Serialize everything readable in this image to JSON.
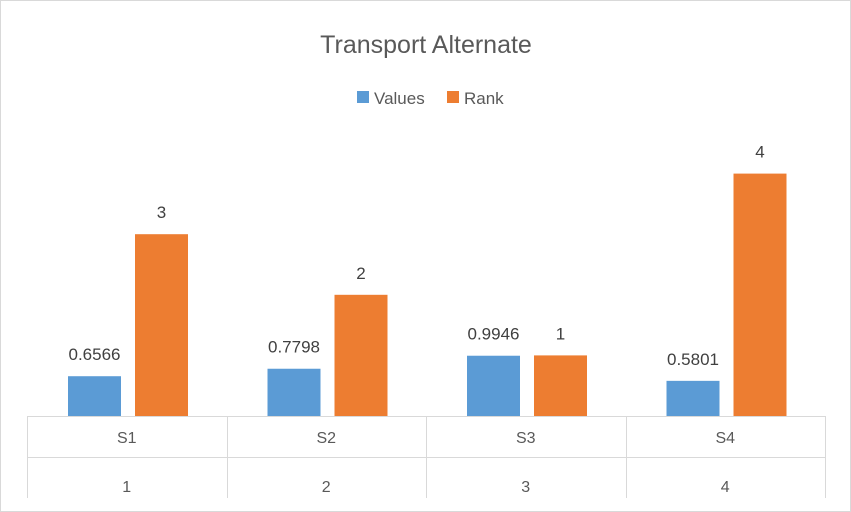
{
  "chart_data": {
    "type": "bar",
    "title": "Transport Alternate",
    "legend_position": "top",
    "grid": false,
    "categories": [
      "S1",
      "S2",
      "S3",
      "S4"
    ],
    "category_level2": [
      "1",
      "2",
      "3",
      "4"
    ],
    "series": [
      {
        "name": "Values",
        "color": "#5b9bd5",
        "values": [
          0.6566,
          0.7798,
          0.9946,
          0.5801
        ],
        "labels": [
          "0.6566",
          "0.7798",
          "0.9946",
          "0.5801"
        ]
      },
      {
        "name": "Rank",
        "color": "#ed7d31",
        "values": [
          3,
          2,
          1,
          4
        ],
        "labels": [
          "3",
          "2",
          "1",
          "4"
        ]
      }
    ],
    "ylim": [
      0,
      5.5
    ]
  }
}
